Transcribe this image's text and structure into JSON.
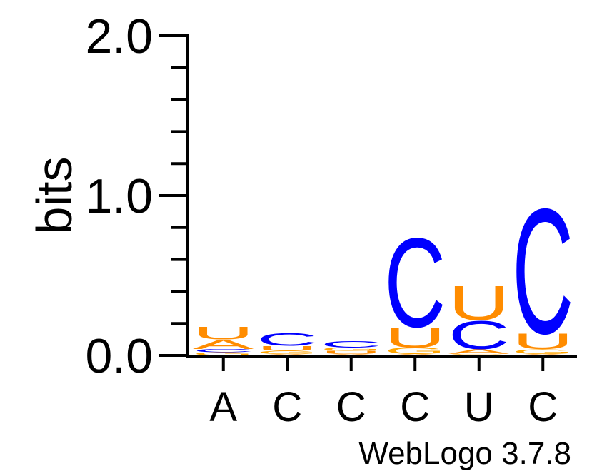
{
  "chart_data": {
    "type": "sequence-logo",
    "ylabel": "bits",
    "ylim": [
      0,
      2
    ],
    "yticks": [
      "0.0",
      "1.0",
      "2.0"
    ],
    "categories": [
      "A",
      "C",
      "C",
      "C",
      "U",
      "C"
    ],
    "colors": {
      "A": "#ff8c00",
      "C": "#0000ff",
      "G": "#ffa500",
      "U": "#ff8c00"
    },
    "stacks": [
      [
        {
          "letter": "G",
          "bits": 0.02
        },
        {
          "letter": "C",
          "bits": 0.02
        },
        {
          "letter": "A",
          "bits": 0.06
        },
        {
          "letter": "U",
          "bits": 0.08
        }
      ],
      [
        {
          "letter": "A",
          "bits": 0.01
        },
        {
          "letter": "G",
          "bits": 0.02
        },
        {
          "letter": "U",
          "bits": 0.03
        },
        {
          "letter": "C",
          "bits": 0.08
        }
      ],
      [
        {
          "letter": "A",
          "bits": 0.01
        },
        {
          "letter": "U",
          "bits": 0.02
        },
        {
          "letter": "G",
          "bits": 0.02
        },
        {
          "letter": "C",
          "bits": 0.04
        }
      ],
      [
        {
          "letter": "A",
          "bits": 0.01
        },
        {
          "letter": "G",
          "bits": 0.04
        },
        {
          "letter": "U",
          "bits": 0.13
        },
        {
          "letter": "C",
          "bits": 0.57
        }
      ],
      [
        {
          "letter": "G",
          "bits": 0.01
        },
        {
          "letter": "A",
          "bits": 0.03
        },
        {
          "letter": "C",
          "bits": 0.18
        },
        {
          "letter": "U",
          "bits": 0.22
        }
      ],
      [
        {
          "letter": "A",
          "bits": 0.01
        },
        {
          "letter": "G",
          "bits": 0.03
        },
        {
          "letter": "U",
          "bits": 0.1
        },
        {
          "letter": "C",
          "bits": 0.8
        }
      ]
    ],
    "caption": "WebLogo 3.7.8"
  }
}
